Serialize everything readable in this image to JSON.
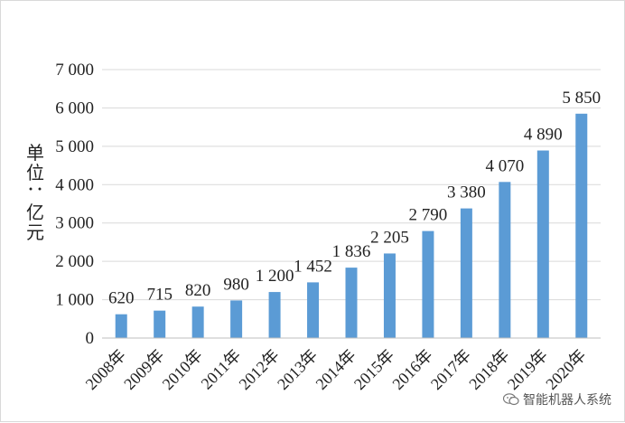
{
  "chart_data": {
    "type": "bar",
    "ylabel": "单位：亿元",
    "categories": [
      "2008年",
      "2009年",
      "2010年",
      "2011年",
      "2012年",
      "2013年",
      "2014年",
      "2015年",
      "2016年",
      "2017年",
      "2018年",
      "2019年",
      "2020年"
    ],
    "values": [
      620,
      715,
      820,
      980,
      1200,
      1452,
      1836,
      2205,
      2790,
      3380,
      4070,
      4890,
      5850
    ],
    "value_labels": [
      "620",
      "715",
      "820",
      "980",
      "1 200",
      "1 452",
      "1 836",
      "2 205",
      "2 790",
      "3 380",
      "4 070",
      "4 890",
      "5 850"
    ],
    "ylim": [
      0,
      7000
    ],
    "yticks": [
      0,
      1000,
      2000,
      3000,
      4000,
      5000,
      6000,
      7000
    ],
    "ytick_labels": [
      "0",
      "1 000",
      "2 000",
      "3 000",
      "4 000",
      "5 000",
      "6 000",
      "7 000"
    ],
    "bar_color": "#5b9bd5",
    "grid": true,
    "legend": "none"
  },
  "watermark": {
    "text": "智能机器人系统",
    "icon": "wechat-icon"
  }
}
